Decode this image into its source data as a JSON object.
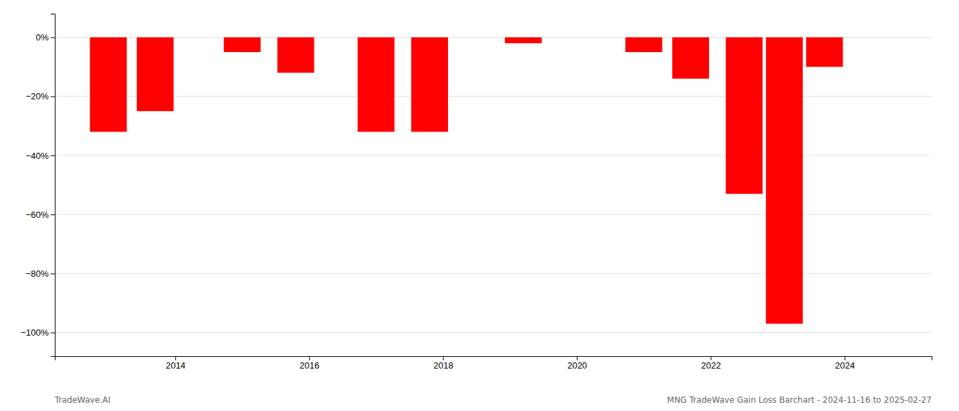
{
  "chart_data": {
    "type": "bar",
    "x": [
      2013,
      2013.7,
      2015,
      2015.8,
      2017,
      2017.8,
      2019.2,
      2021,
      2021.7,
      2022.5,
      2023.1,
      2023.7
    ],
    "values": [
      -32,
      -25,
      -5,
      -12,
      -32,
      -32,
      -2,
      -5,
      -14,
      -53,
      -97,
      -10
    ],
    "color": "#ff0000",
    "xlim": [
      2012.2,
      2025.3
    ],
    "xticks": [
      2014,
      2016,
      2018,
      2020,
      2022,
      2024
    ],
    "ylim": [
      -108,
      8
    ],
    "yticks": [
      {
        "value": 0,
        "label": "0%"
      },
      {
        "value": -20,
        "label": "−20%"
      },
      {
        "value": -40,
        "label": "−40%"
      },
      {
        "value": -60,
        "label": "−60%"
      },
      {
        "value": -80,
        "label": "−80%"
      },
      {
        "value": -100,
        "label": "−100%"
      }
    ],
    "grid": true,
    "annotations": [
      "TradeWave.AI",
      "MNG TradeWave Gain Loss Barchart - 2024-11-16 to 2025-02-27"
    ]
  }
}
